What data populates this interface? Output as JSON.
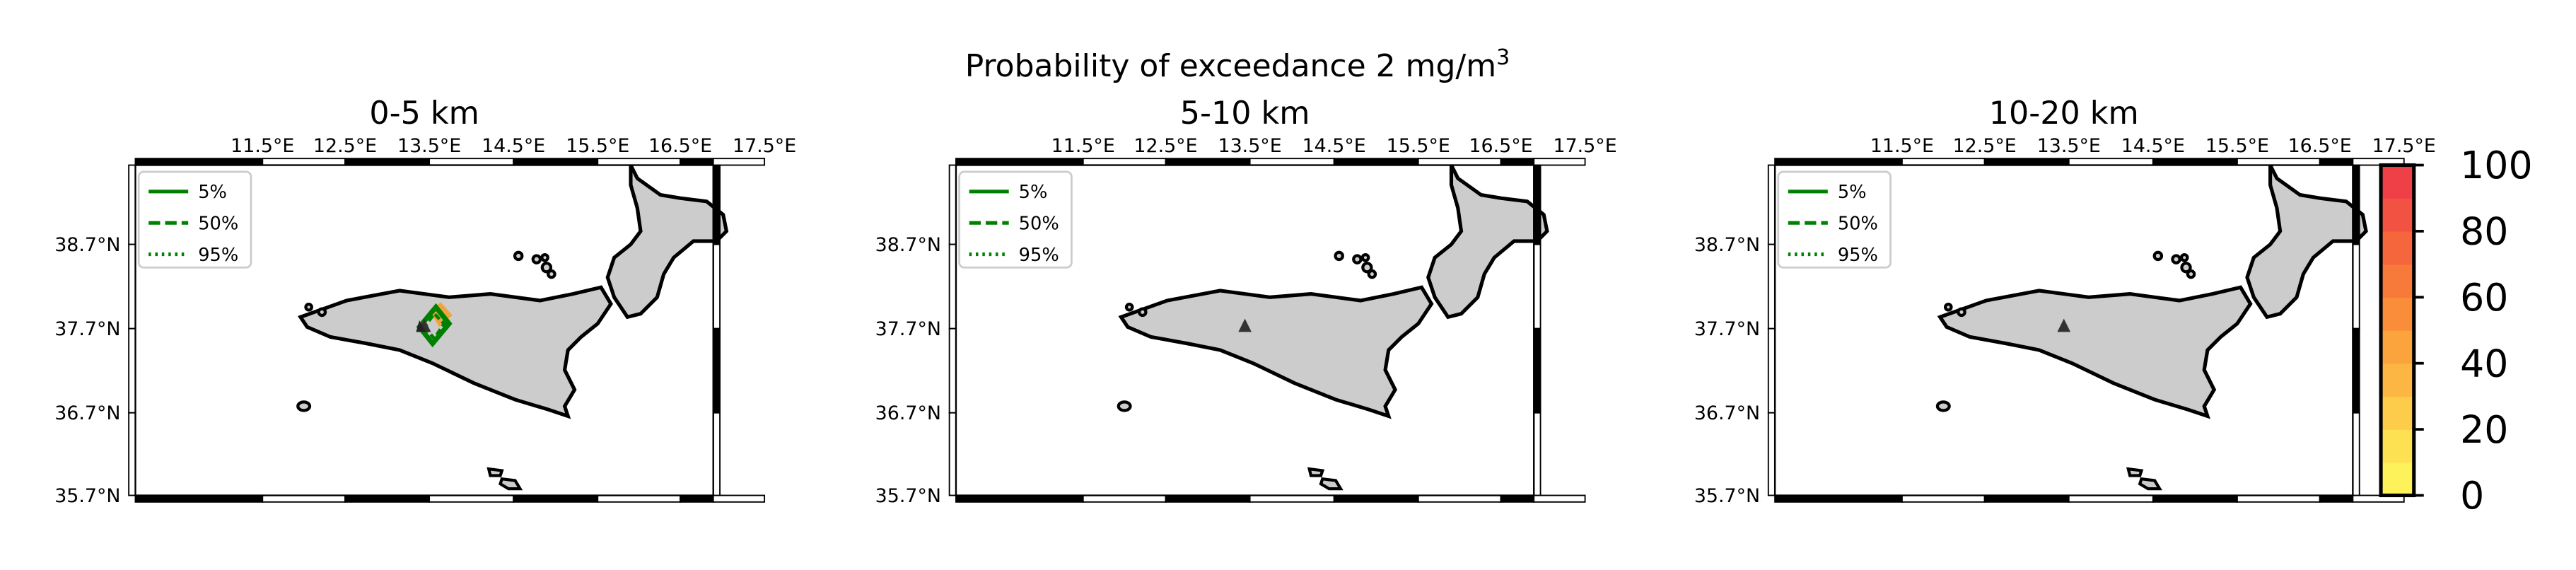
{
  "figure": {
    "suptitle_main": "Probability of exceedance 2 mg/m",
    "suptitle_sup": "3"
  },
  "lon_ticks": [
    "11.5°E",
    "12.5°E",
    "13.5°E",
    "14.5°E",
    "15.5°E",
    "16.5°E",
    "17.5°E"
  ],
  "lat_ticks": [
    "38.7°N",
    "37.7°N",
    "36.7°N",
    "35.7°N"
  ],
  "legend": [
    "5%",
    "50%",
    "95%"
  ],
  "panels": [
    {
      "title": "0-5 km",
      "has_plume": true
    },
    {
      "title": "5-10 km",
      "has_plume": false
    },
    {
      "title": "10-20 km",
      "has_plume": false
    }
  ],
  "colorbar": {
    "ticks": [
      "100",
      "80",
      "60",
      "40",
      "20",
      "0"
    ],
    "colors": [
      "#fdf25a",
      "#fde152",
      "#fdcc4a",
      "#fcb643",
      "#fba33c",
      "#fa8d39",
      "#f87a3a",
      "#f5663d",
      "#f25242",
      "#ef4048"
    ]
  },
  "colors": {
    "land": "#cccccc",
    "contour": "#008000",
    "plume": "#f4a030",
    "vent": "#333333"
  }
}
